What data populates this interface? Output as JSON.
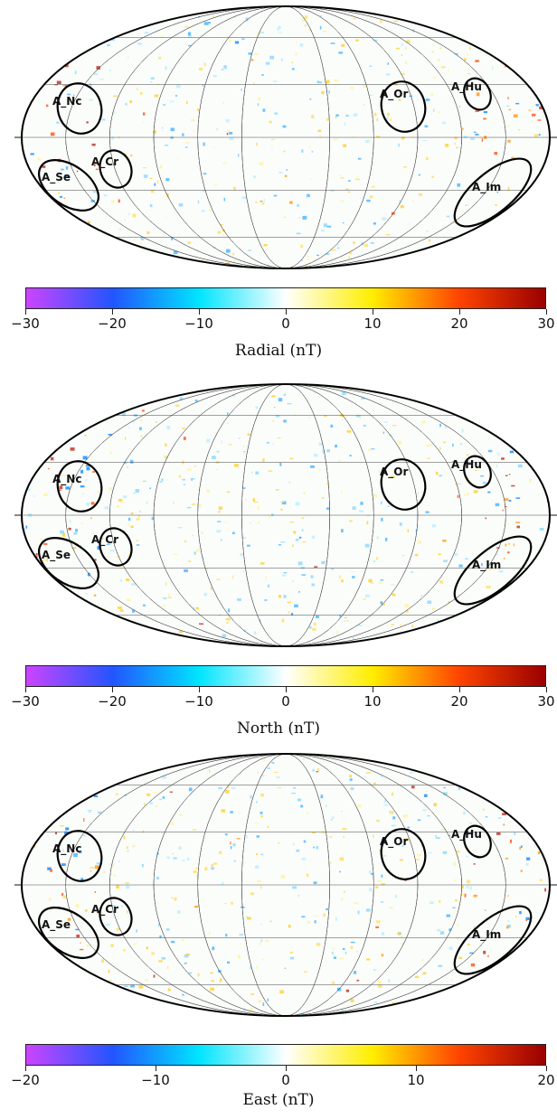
{
  "colors": {
    "scale": [
      "#cc44ff",
      "#2255ff",
      "#00e5ff",
      "#ffffff",
      "#ffee00",
      "#ff4400",
      "#990000"
    ],
    "outline": "#000000",
    "grid": "#444444"
  },
  "regions": [
    "A_Nc",
    "A_Cr",
    "A_Se",
    "A_Or",
    "A_Hu",
    "A_Im"
  ],
  "panels": [
    {
      "title": "Radial (nT)",
      "ticks": [
        "−30",
        "−20",
        "−10",
        "0",
        "10",
        "20",
        "30"
      ],
      "range": [
        -30,
        30
      ]
    },
    {
      "title": "North (nT)",
      "ticks": [
        "−30",
        "−20",
        "−10",
        "0",
        "10",
        "20",
        "30"
      ],
      "range": [
        -30,
        30
      ]
    },
    {
      "title": "East (nT)",
      "ticks": [
        "−20",
        "−10",
        "0",
        "10",
        "20"
      ],
      "range": [
        -20,
        20
      ]
    }
  ]
}
